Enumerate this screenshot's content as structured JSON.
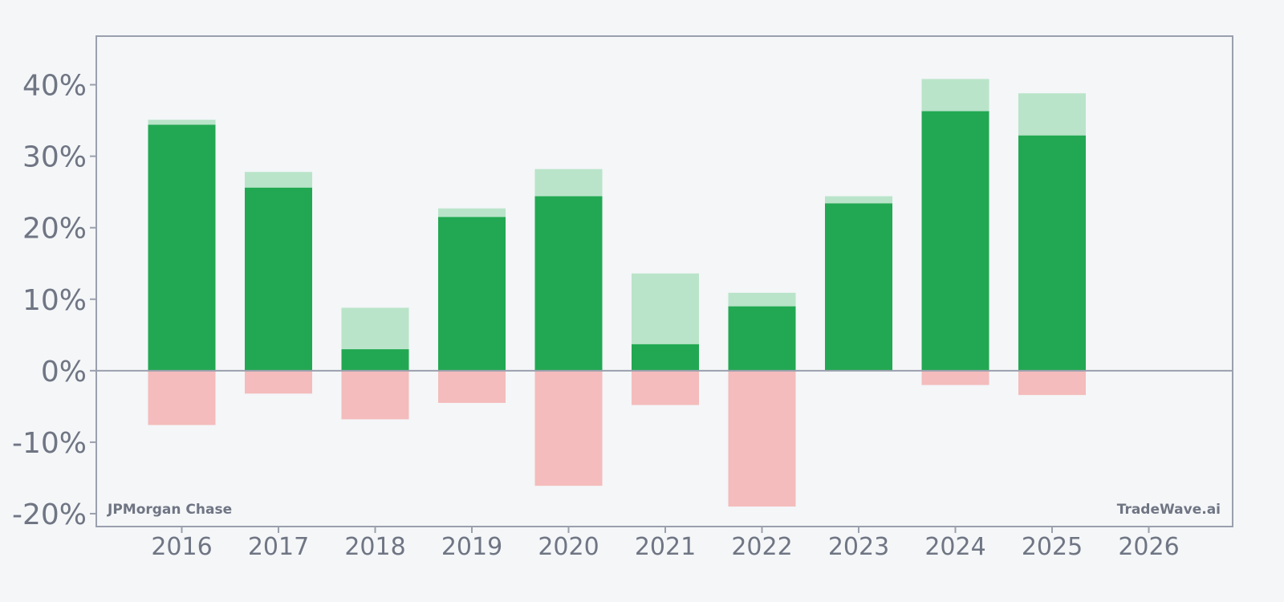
{
  "chart_data": {
    "type": "bar",
    "categories": [
      "2016",
      "2017",
      "2018",
      "2019",
      "2020",
      "2021",
      "2022",
      "2023",
      "2024",
      "2025",
      "2026"
    ],
    "series": [
      {
        "values": [
          34.4,
          25.6,
          3.0,
          21.5,
          24.4,
          3.7,
          9.0,
          23.4,
          36.3,
          32.9,
          null
        ]
      },
      {
        "values": [
          35.1,
          27.8,
          8.8,
          22.7,
          28.2,
          13.6,
          10.9,
          24.4,
          40.8,
          38.8,
          null
        ]
      },
      {
        "values": [
          -7.6,
          -3.2,
          -6.8,
          -4.5,
          -16.1,
          -4.8,
          -19.0,
          0.0,
          -2.0,
          -3.4,
          null
        ]
      }
    ],
    "ylim": [
      -21.8,
      46.8
    ],
    "yticks": [
      -20,
      -10,
      0,
      10,
      20,
      30,
      40
    ],
    "ytick_labels": [
      "-20%",
      "-10%",
      "0%",
      "10%",
      "20%",
      "30%",
      "40%"
    ],
    "grid": false,
    "colors": {
      "close": "#22a852",
      "high": "#b9e4c9",
      "low": "#f4bcbc",
      "axis": "#9aa0ad",
      "text": "#6f7583",
      "background": "#f4f6f8"
    }
  },
  "labels": {
    "company": "JPMorgan Chase",
    "brand": "TradeWave.ai"
  }
}
